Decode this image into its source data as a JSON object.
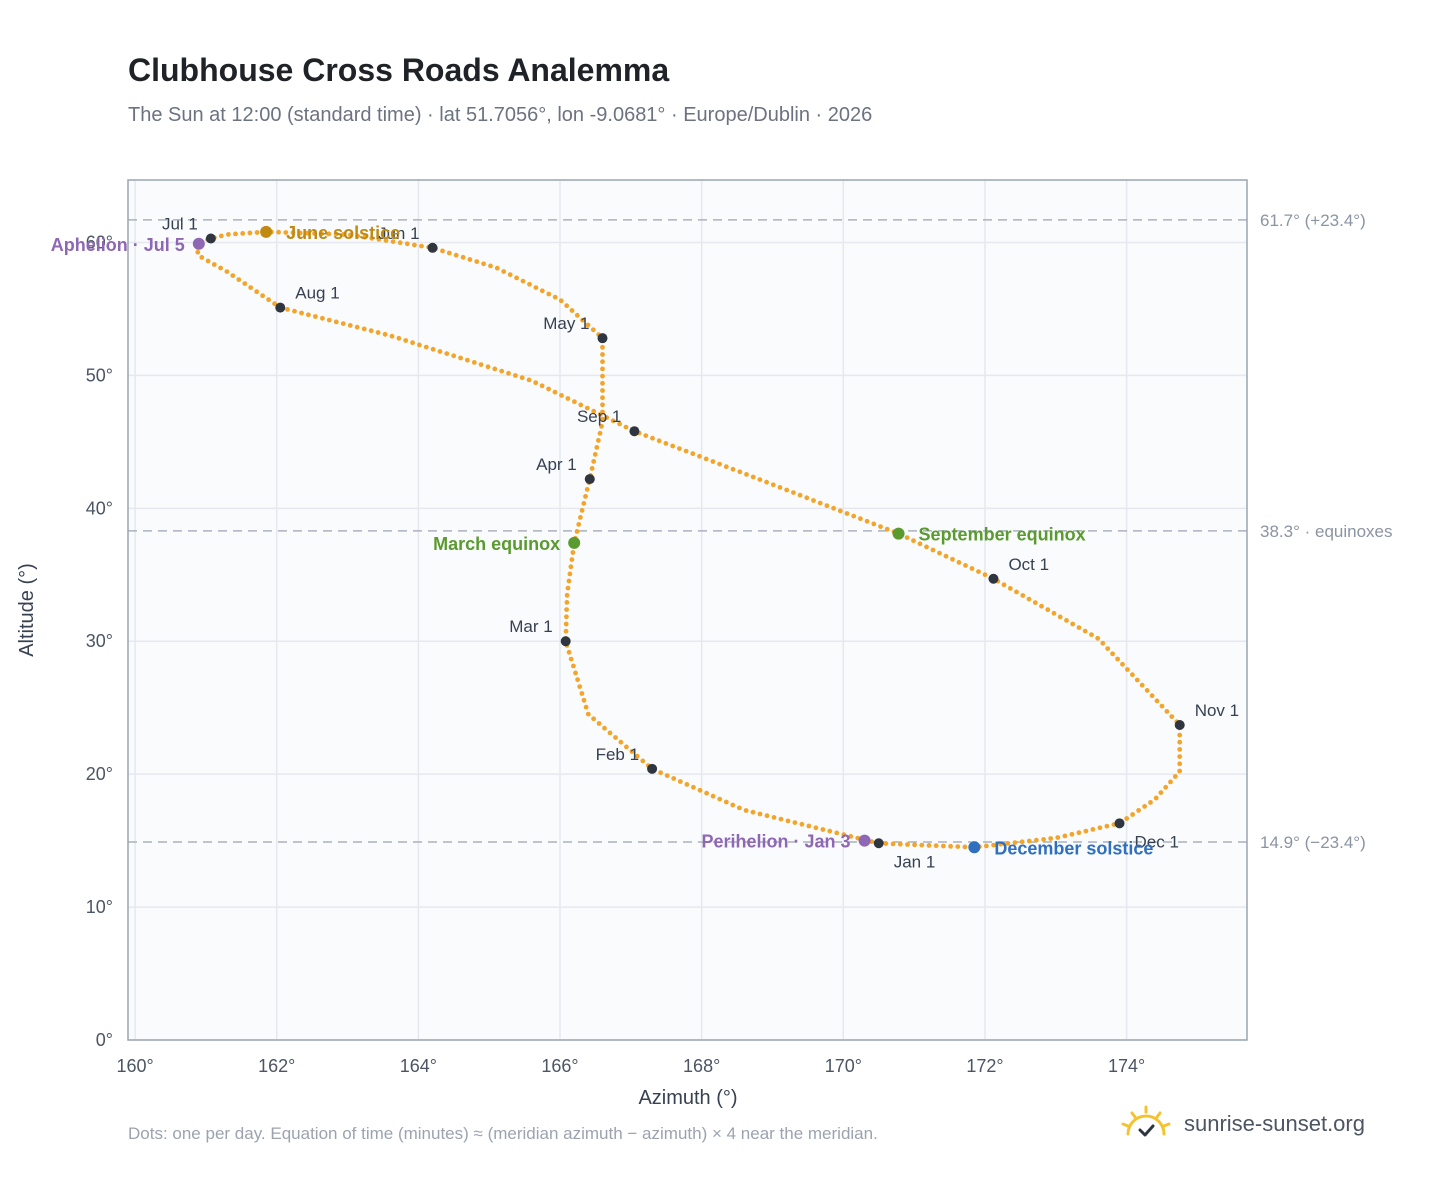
{
  "title": "Clubhouse Cross Roads Analemma",
  "subtitle": "The Sun at 12:00 (standard time) · lat 51.7056°, lon -9.0681° · Europe/Dublin · 2026",
  "footnote": "Dots: one per day. Equation of time (minutes) ≈ (meridian azimuth − azimuth) × 4 near the meridian.",
  "brand": {
    "name": "sunrise-sunset.org",
    "icon": "sun-logo-icon"
  },
  "colors": {
    "curve": "#f2a52a",
    "month_marker": "#2f3640",
    "solstice_june": "#c08a12",
    "solstice_december": "#2f6fbf",
    "equinox": "#5a9a2f",
    "apsis": "#8e67b5",
    "reference_line": "#aab2bf",
    "grid": "#e5e9ef",
    "plot_bg": "#f9fbfd",
    "frame": "#9aa5b4"
  },
  "chart_data": {
    "type": "scatter",
    "xlabel": "Azimuth (°)",
    "ylabel": "Altitude (°)",
    "xlim": [
      159.9,
      175.7
    ],
    "ylim": [
      0,
      64.7
    ],
    "x_ticks": [
      160,
      162,
      164,
      166,
      168,
      170,
      172,
      174
    ],
    "x_tick_labels": [
      "160°",
      "162°",
      "164°",
      "166°",
      "168°",
      "170°",
      "172°",
      "174°"
    ],
    "y_ticks": [
      0,
      10,
      20,
      30,
      40,
      50,
      60
    ],
    "y_tick_labels": [
      "0°",
      "10°",
      "20°",
      "30°",
      "40°",
      "50°",
      "60°"
    ],
    "grid": true,
    "daily_path": [
      [
        170.5,
        14.8
      ],
      [
        168.6,
        17.3
      ],
      [
        167.3,
        20.4
      ],
      [
        166.4,
        24.5
      ],
      [
        166.08,
        30.0
      ],
      [
        166.1,
        33.5
      ],
      [
        166.2,
        37.4
      ],
      [
        166.42,
        42.2
      ],
      [
        166.6,
        46.5
      ],
      [
        166.6,
        52.8
      ],
      [
        166.0,
        55.7
      ],
      [
        165.1,
        58.1
      ],
      [
        164.2,
        59.6
      ],
      [
        163.0,
        60.6
      ],
      [
        161.85,
        60.8
      ],
      [
        161.3,
        60.6
      ],
      [
        161.07,
        60.3
      ],
      [
        160.85,
        59.9
      ],
      [
        160.9,
        59.0
      ],
      [
        161.3,
        57.8
      ],
      [
        162.05,
        55.1
      ],
      [
        163.6,
        53.0
      ],
      [
        165.6,
        49.6
      ],
      [
        167.05,
        45.8
      ],
      [
        168.9,
        42.0
      ],
      [
        170.78,
        38.1
      ],
      [
        172.12,
        34.7
      ],
      [
        173.6,
        30.2
      ],
      [
        174.75,
        23.7
      ],
      [
        174.75,
        20.2
      ],
      [
        174.4,
        18.1
      ],
      [
        173.9,
        16.3
      ],
      [
        173.0,
        15.2
      ],
      [
        171.85,
        14.5
      ],
      [
        170.5,
        14.8
      ]
    ],
    "month_markers": [
      {
        "label": "Jan 1",
        "x": 170.5,
        "y": 14.8
      },
      {
        "label": "Feb 1",
        "x": 167.3,
        "y": 20.4
      },
      {
        "label": "Mar 1",
        "x": 166.08,
        "y": 30.0
      },
      {
        "label": "Apr 1",
        "x": 166.42,
        "y": 42.2
      },
      {
        "label": "May 1",
        "x": 166.6,
        "y": 52.8
      },
      {
        "label": "Jun 1",
        "x": 164.2,
        "y": 59.6
      },
      {
        "label": "Jul 1",
        "x": 161.07,
        "y": 60.3
      },
      {
        "label": "Aug 1",
        "x": 162.05,
        "y": 55.1
      },
      {
        "label": "Sep 1",
        "x": 167.05,
        "y": 45.8
      },
      {
        "label": "Oct 1",
        "x": 172.12,
        "y": 34.7
      },
      {
        "label": "Nov 1",
        "x": 174.75,
        "y": 23.7
      },
      {
        "label": "Dec 1",
        "x": 173.9,
        "y": 16.3
      }
    ],
    "events": [
      {
        "label": "June solstice",
        "x": 161.85,
        "y": 60.8,
        "kind": "solstice_june"
      },
      {
        "label": "December solstice",
        "x": 171.85,
        "y": 14.5,
        "kind": "solstice_december"
      },
      {
        "label": "March equinox",
        "x": 166.2,
        "y": 37.4,
        "kind": "equinox"
      },
      {
        "label": "September equinox",
        "x": 170.78,
        "y": 38.1,
        "kind": "equinox"
      },
      {
        "label": "Aphelion · Jul 5",
        "x": 160.9,
        "y": 59.9,
        "kind": "apsis"
      },
      {
        "label": "Perihelion · Jan 3",
        "x": 170.3,
        "y": 15.0,
        "kind": "apsis"
      }
    ],
    "reference_lines": [
      {
        "y": 61.7,
        "label": "61.7° (+23.4°)"
      },
      {
        "y": 38.3,
        "label": "38.3° · equinoxes"
      },
      {
        "y": 14.9,
        "label": "14.9° (−23.4°)"
      }
    ]
  }
}
